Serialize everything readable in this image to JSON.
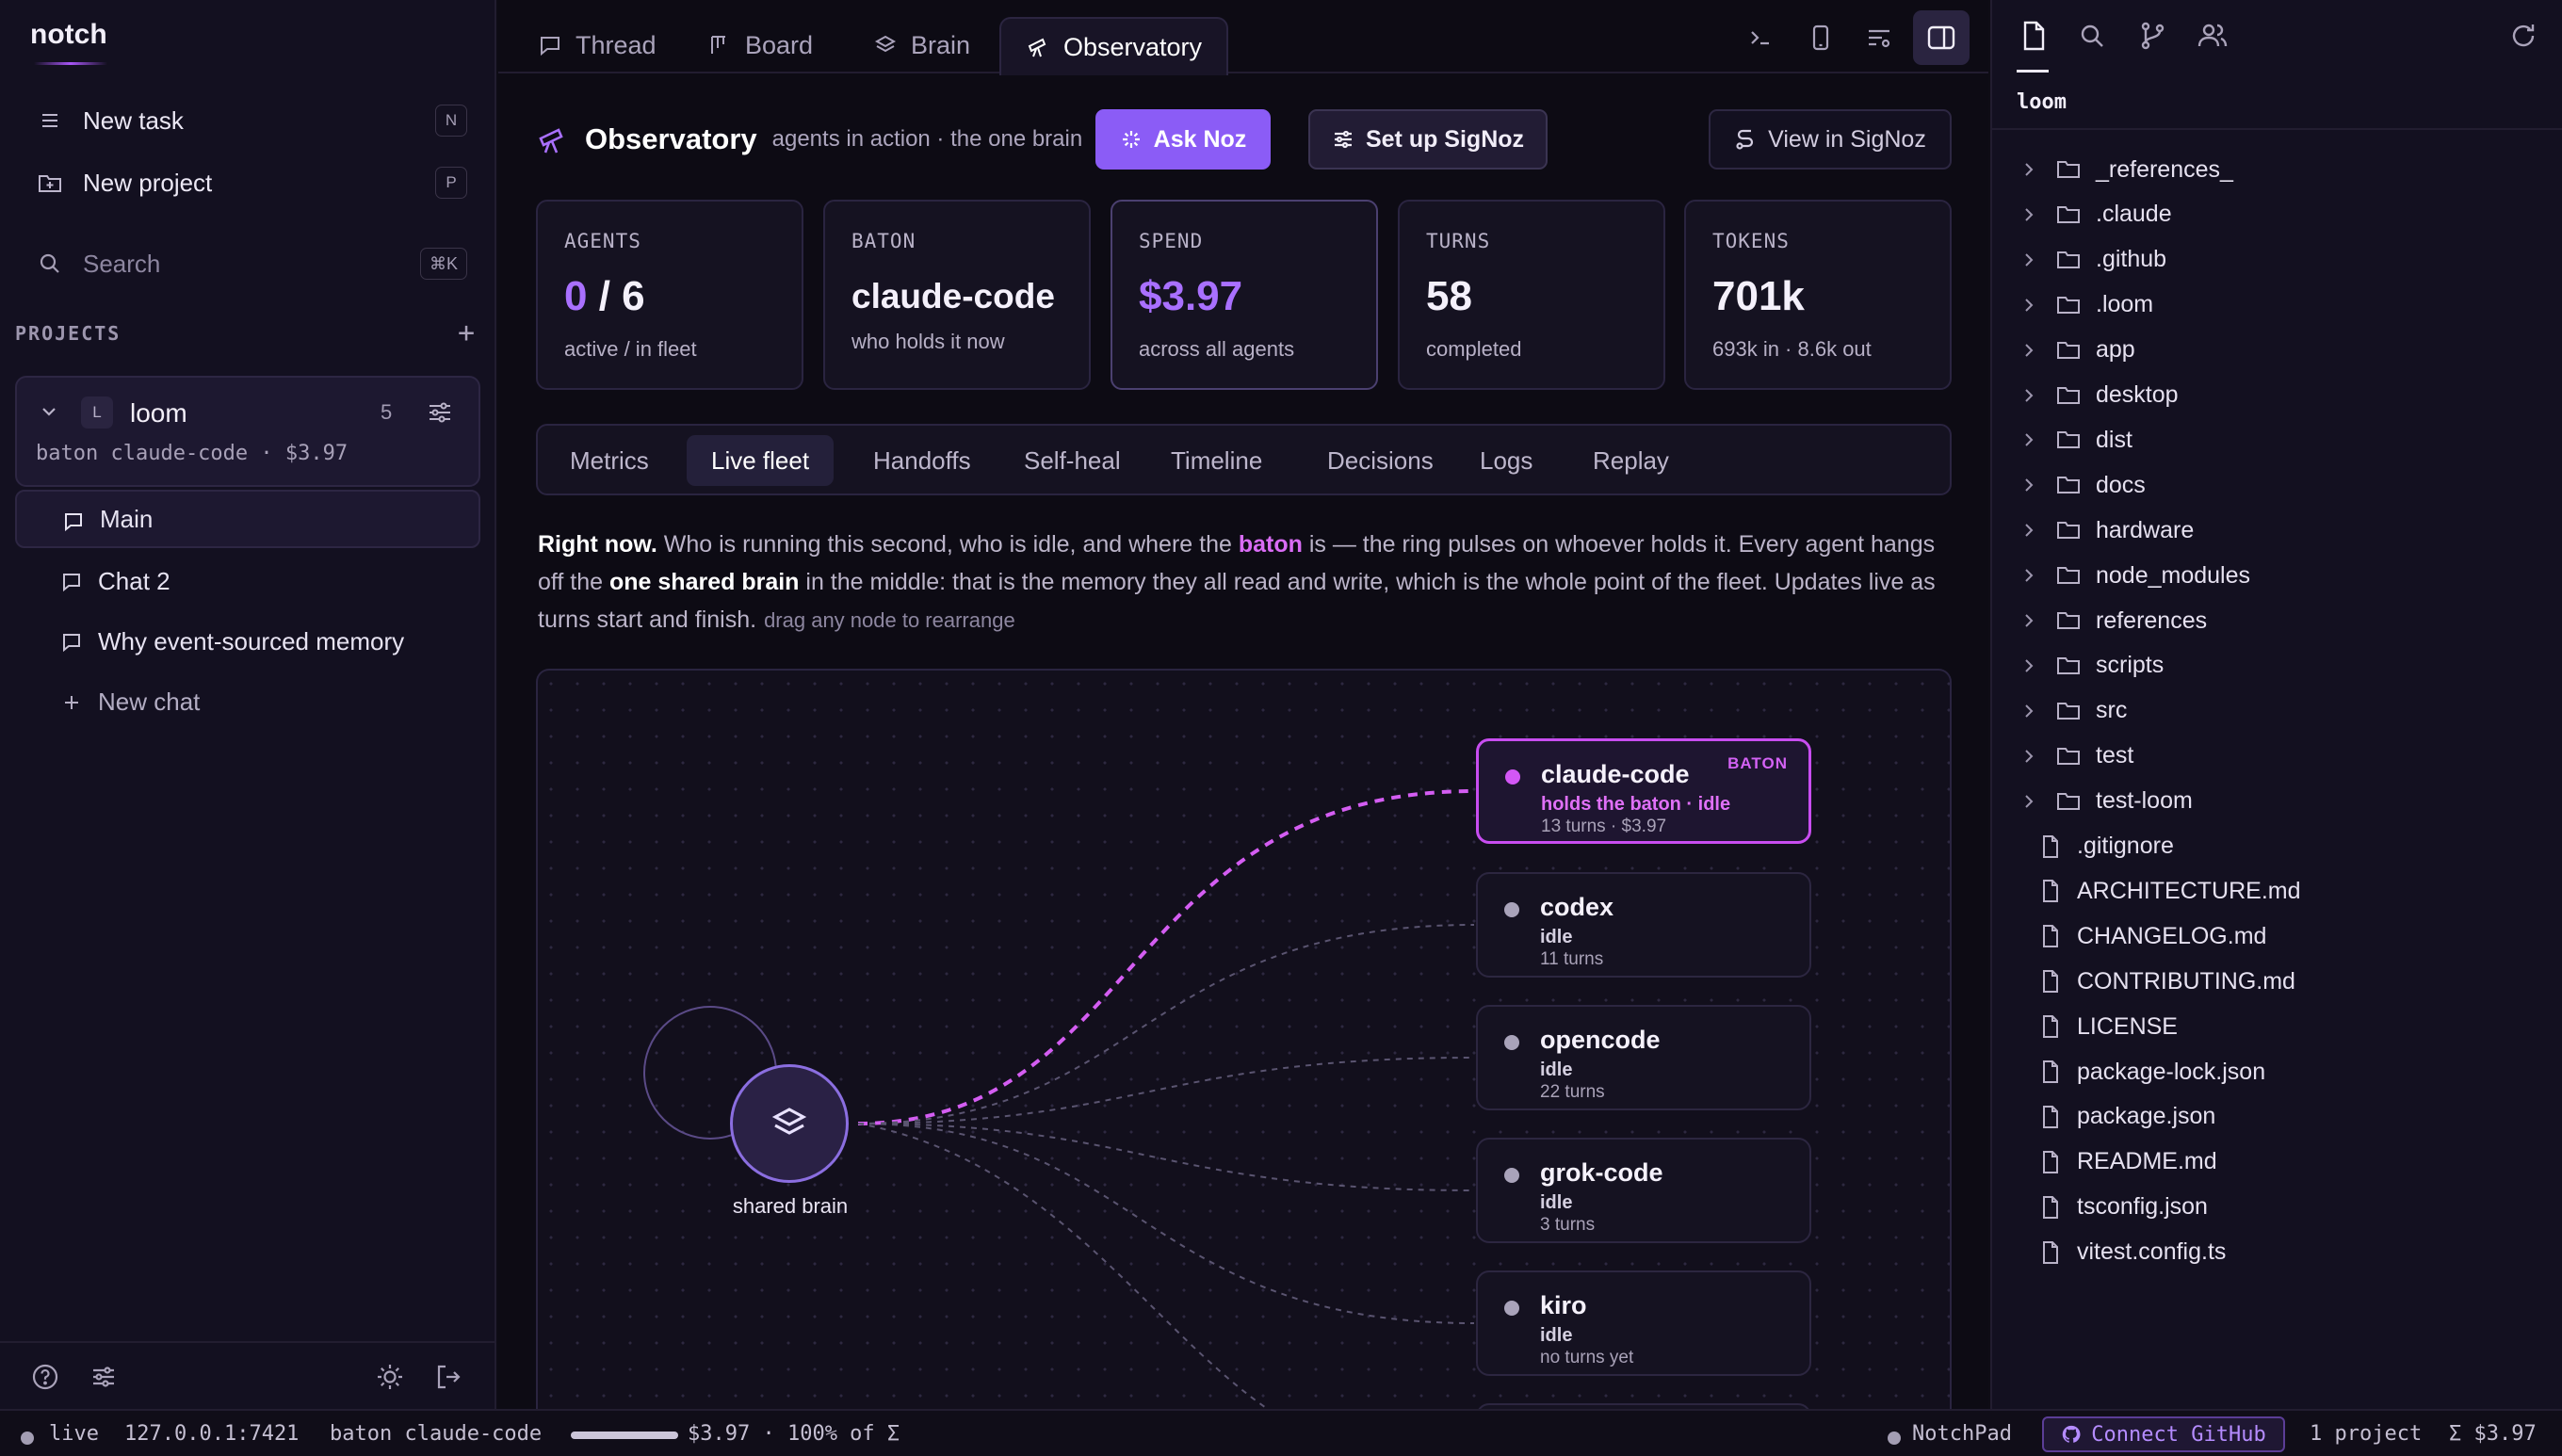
{
  "app": {
    "brand": "notch"
  },
  "sidebar": {
    "new_task": {
      "label": "New task",
      "shortcut": "N"
    },
    "new_project": {
      "label": "New project",
      "shortcut": "P"
    },
    "search": {
      "label": "Search",
      "shortcut": "⌘K"
    },
    "projects_label": "PROJECTS",
    "project": {
      "letter": "L",
      "name": "loom",
      "count": "5",
      "meta": "baton claude-code · $3.97"
    },
    "chats": [
      {
        "label": "Main",
        "active": true
      },
      {
        "label": "Chat 2"
      },
      {
        "label": "Why event-sourced memory"
      }
    ],
    "new_chat": "New chat"
  },
  "tabs": [
    {
      "label": "Thread",
      "icon": "chat-icon"
    },
    {
      "label": "Board",
      "icon": "board-icon"
    },
    {
      "label": "Brain",
      "icon": "layers-icon"
    },
    {
      "label": "Observatory",
      "icon": "telescope-icon",
      "active": true
    }
  ],
  "observatory": {
    "title": "Observatory",
    "subtitle": "agents in action · the one brain",
    "ask_noz": "Ask Noz",
    "setup_signoz": "Set up SigNoz",
    "view_signoz": "View in SigNoz"
  },
  "stats": [
    {
      "label": "AGENTS",
      "value_a": "0",
      "value_b": " / 6",
      "sub": "active / in fleet"
    },
    {
      "label": "BATON",
      "value": "claude-code",
      "sub": "who holds it now"
    },
    {
      "label": "SPEND",
      "value": "$3.97",
      "sub": "across all agents"
    },
    {
      "label": "TURNS",
      "value": "58",
      "sub": "completed"
    },
    {
      "label": "TOKENS",
      "value": "701k",
      "sub": "693k in · 8.6k out"
    }
  ],
  "subtabs": [
    "Metrics",
    "Live fleet",
    "Handoffs",
    "Self-heal",
    "Timeline",
    "Decisions",
    "Logs",
    "Replay"
  ],
  "active_subtab": "Live fleet",
  "description": {
    "lead": "Right now.",
    "p1": " Who is running this second, who is idle, and where the ",
    "baton": "baton",
    "p2": " is — the ring pulses on whoever holds it. Every agent hangs off the ",
    "bold": "one shared brain",
    "p3": " in the middle: that is the memory they all read and write, which is the whole point of the fleet. Updates live as turns start and finish.",
    "hint": "drag any node to rearrange"
  },
  "graph": {
    "brain_label": "shared brain",
    "baton_tag": "BATON",
    "agents": [
      {
        "name": "claude-code",
        "state": "holds the baton · idle",
        "meta": "13 turns · $3.97",
        "baton": true
      },
      {
        "name": "codex",
        "state": "idle",
        "meta": "11 turns"
      },
      {
        "name": "opencode",
        "state": "idle",
        "meta": "22 turns"
      },
      {
        "name": "grok-code",
        "state": "idle",
        "meta": "3 turns"
      },
      {
        "name": "kiro",
        "state": "idle",
        "meta": "no turns yet"
      }
    ]
  },
  "file_panel": {
    "root": "loom",
    "folders": [
      "_references_",
      ".claude",
      ".github",
      ".loom",
      "app",
      "desktop",
      "dist",
      "docs",
      "hardware",
      "node_modules",
      "references",
      "scripts",
      "src",
      "test",
      "test-loom"
    ],
    "files": [
      ".gitignore",
      "ARCHITECTURE.md",
      "CHANGELOG.md",
      "CONTRIBUTING.md",
      "LICENSE",
      "package-lock.json",
      "package.json",
      "README.md",
      "tsconfig.json",
      "vitest.config.ts"
    ]
  },
  "status_bar": {
    "live": "live",
    "host": "127.0.0.1:7421",
    "baton": "baton claude-code",
    "spend_share": 1.0,
    "spend": "$3.97 · 100% of Σ",
    "notchpad": "NotchPad",
    "github": "Connect GitHub",
    "projects": "1 project",
    "total": "Σ $3.97"
  },
  "colors": {
    "accent": "#8b5cf6",
    "baton": "#c84df0",
    "background": "#0e0c15"
  }
}
